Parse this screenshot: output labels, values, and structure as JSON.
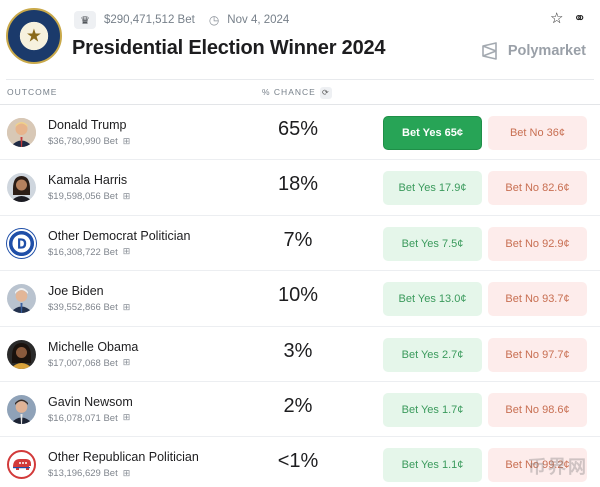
{
  "market": {
    "volume": "$290,471,512 Bet",
    "date": "Nov 4, 2024",
    "title": "Presidential Election Winner 2024",
    "brand": "Polymarket"
  },
  "columns": {
    "outcome": "OUTCOME",
    "chance": "% CHANCE"
  },
  "outcomes": [
    {
      "name": "Donald Trump",
      "volume": "$36,780,990 Bet",
      "chance": "65%",
      "yes": "Bet Yes 65¢",
      "no": "Bet No 36¢"
    },
    {
      "name": "Kamala Harris",
      "volume": "$19,598,056 Bet",
      "chance": "18%",
      "yes": "Bet Yes 17.9¢",
      "no": "Bet No 82.6¢"
    },
    {
      "name": "Other Democrat Politician",
      "volume": "$16,308,722 Bet",
      "chance": "7%",
      "yes": "Bet Yes 7.5¢",
      "no": "Bet No 92.9¢"
    },
    {
      "name": "Joe Biden",
      "volume": "$39,552,866 Bet",
      "chance": "10%",
      "yes": "Bet Yes 13.0¢",
      "no": "Bet No 93.7¢"
    },
    {
      "name": "Michelle Obama",
      "volume": "$17,007,068 Bet",
      "chance": "3%",
      "yes": "Bet Yes 2.7¢",
      "no": "Bet No 97.7¢"
    },
    {
      "name": "Gavin Newsom",
      "volume": "$16,078,071 Bet",
      "chance": "2%",
      "yes": "Bet Yes 1.7¢",
      "no": "Bet No 98.6¢"
    },
    {
      "name": "Other Republican Politician",
      "volume": "$13,196,629 Bet",
      "chance": "<1%",
      "yes": "Bet Yes 1.1¢",
      "no": "Bet No 99.2¢"
    }
  ],
  "watermark": "币界网",
  "icons": {
    "trophy": "trophy-icon",
    "clock": "clock-icon",
    "star": "star-icon",
    "link": "link-icon",
    "refresh": "refresh-icon",
    "gift": "gift-icon"
  },
  "colors": {
    "yes_primary": "#27a456",
    "yes_light": "#e5f6ea",
    "no_light": "#fdeceb",
    "no_text": "#c86f52"
  }
}
